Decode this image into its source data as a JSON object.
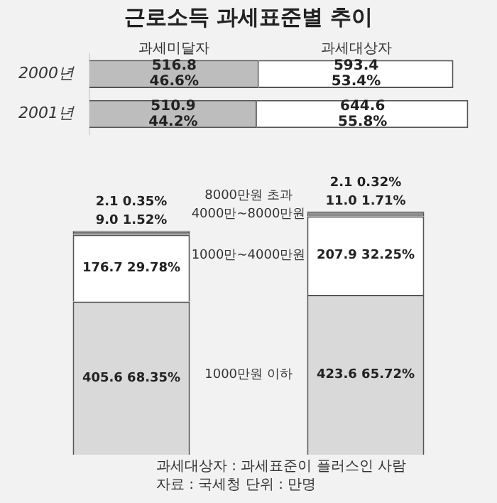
{
  "chart_data": [
    {
      "type": "bar",
      "title": "근로소득 과세표준별 추이",
      "orientation": "horizontal",
      "stacked": true,
      "categories": [
        "2000년",
        "2001년"
      ],
      "tick_labels": "y",
      "series": [
        {
          "name": "과세미달자",
          "color": "#bdbdbd",
          "values": [
            516.8,
            510.9
          ],
          "value_labels": [
            "516.8\n46.6%",
            "510.9\n44.2%"
          ]
        },
        {
          "name": "과세대상자",
          "color": "#ffffff",
          "values": [
            593.4,
            644.6
          ],
          "value_labels": [
            "593.4\n53.4%",
            "644.6\n55.8%"
          ]
        }
      ]
    },
    {
      "type": "bar",
      "stacked": true,
      "categories": [
        null,
        null
      ],
      "tick_labels": false,
      "series": [
        {
          "name": "1000만원 이하",
          "color": "#d9d9d9",
          "values": [
            405.6,
            423.6
          ],
          "value_labels": [
            "405.6 68.35%",
            "423.6 65.72%"
          ]
        },
        {
          "name": "1000만~4000만원",
          "color": "#ffffff",
          "values": [
            176.7,
            207.9
          ],
          "value_labels": [
            "176.7 29.78%",
            "207.9 32.25%"
          ]
        },
        {
          "name": "4000만~8000만원",
          "color": "#8c8c8c",
          "values": [
            9.0,
            11.0
          ],
          "value_labels": [
            "9.0 1.52%",
            "11.0 1.71%"
          ]
        },
        {
          "name": "8000만원 초과",
          "color": "#c8c8c8",
          "values": [
            2.1,
            2.1
          ],
          "value_labels": [
            "2.1 0.35%",
            "2.1 0.32%"
          ]
        }
      ],
      "annotations": [
        "과세대상자 : 과세표준이 플러스인 사람",
        "자료 : 국세청  단위 : 만명"
      ]
    }
  ]
}
